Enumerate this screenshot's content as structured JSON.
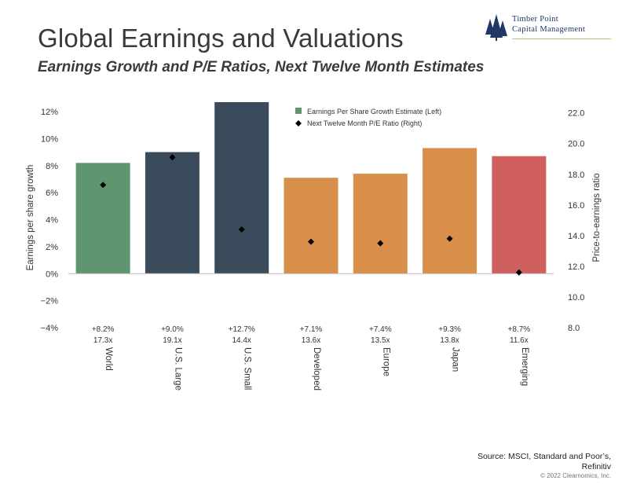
{
  "header": {
    "title": "Global Earnings and Valuations",
    "subtitle": "Earnings Growth and P/E Ratios, Next Twelve Month Estimates"
  },
  "logo": {
    "line1": "Timber Point",
    "line2": "Capital Management",
    "color": "#1f3866"
  },
  "chart_data": {
    "type": "bar",
    "categories": [
      "World",
      "U.S. Large",
      "U.S. Small",
      "Developed",
      "Europe",
      "Japan",
      "Emerging"
    ],
    "series": [
      {
        "name": "Earnings Per Share Growth Estimate (Left)",
        "type": "bar",
        "axis": "left",
        "values": [
          8.2,
          9.0,
          12.7,
          7.1,
          7.4,
          9.3,
          8.7
        ],
        "colors": [
          "#5f9670",
          "#3a4b5c",
          "#3a4b5c",
          "#d88f4a",
          "#d88f4a",
          "#d88f4a",
          "#d0605e"
        ]
      },
      {
        "name": "Next Twelve Month P/E Ratio (Right)",
        "type": "scatter",
        "axis": "right",
        "values": [
          17.3,
          19.1,
          14.4,
          13.6,
          13.5,
          13.8,
          11.6
        ],
        "color": "#000000"
      }
    ],
    "growth_labels": [
      "+8.2%",
      "+9.0%",
      "+12.7%",
      "+7.1%",
      "+7.4%",
      "+9.3%",
      "+8.7%"
    ],
    "pe_labels": [
      "17.3x",
      "19.1x",
      "14.4x",
      "13.6x",
      "13.5x",
      "13.8x",
      "11.6x"
    ],
    "ylabel": "Earnings per share growth",
    "y2label": "Price-to-earnings ratio",
    "ylim": [
      -4,
      12.7
    ],
    "y2lim": [
      8,
      22.7
    ],
    "yticks": [
      -4,
      -2,
      0,
      2,
      4,
      6,
      8,
      10,
      12
    ],
    "ytick_labels": [
      "−4%",
      "−2%",
      "0%",
      "2%",
      "4%",
      "6%",
      "8%",
      "10%",
      "12%"
    ],
    "y2ticks": [
      8,
      10,
      12,
      14,
      16,
      18,
      20,
      22
    ],
    "y2tick_labels": [
      "8.0",
      "10.0",
      "12.0",
      "14.0",
      "16.0",
      "18.0",
      "20.0",
      "22.0"
    ],
    "grid": false,
    "legend_position": "top-center"
  },
  "footer": {
    "source_line1": "Source: MSCI, Standard and Poor’s,",
    "source_line2": "Refinitiv",
    "copyright": "© 2022 Clearnomics, Inc."
  }
}
